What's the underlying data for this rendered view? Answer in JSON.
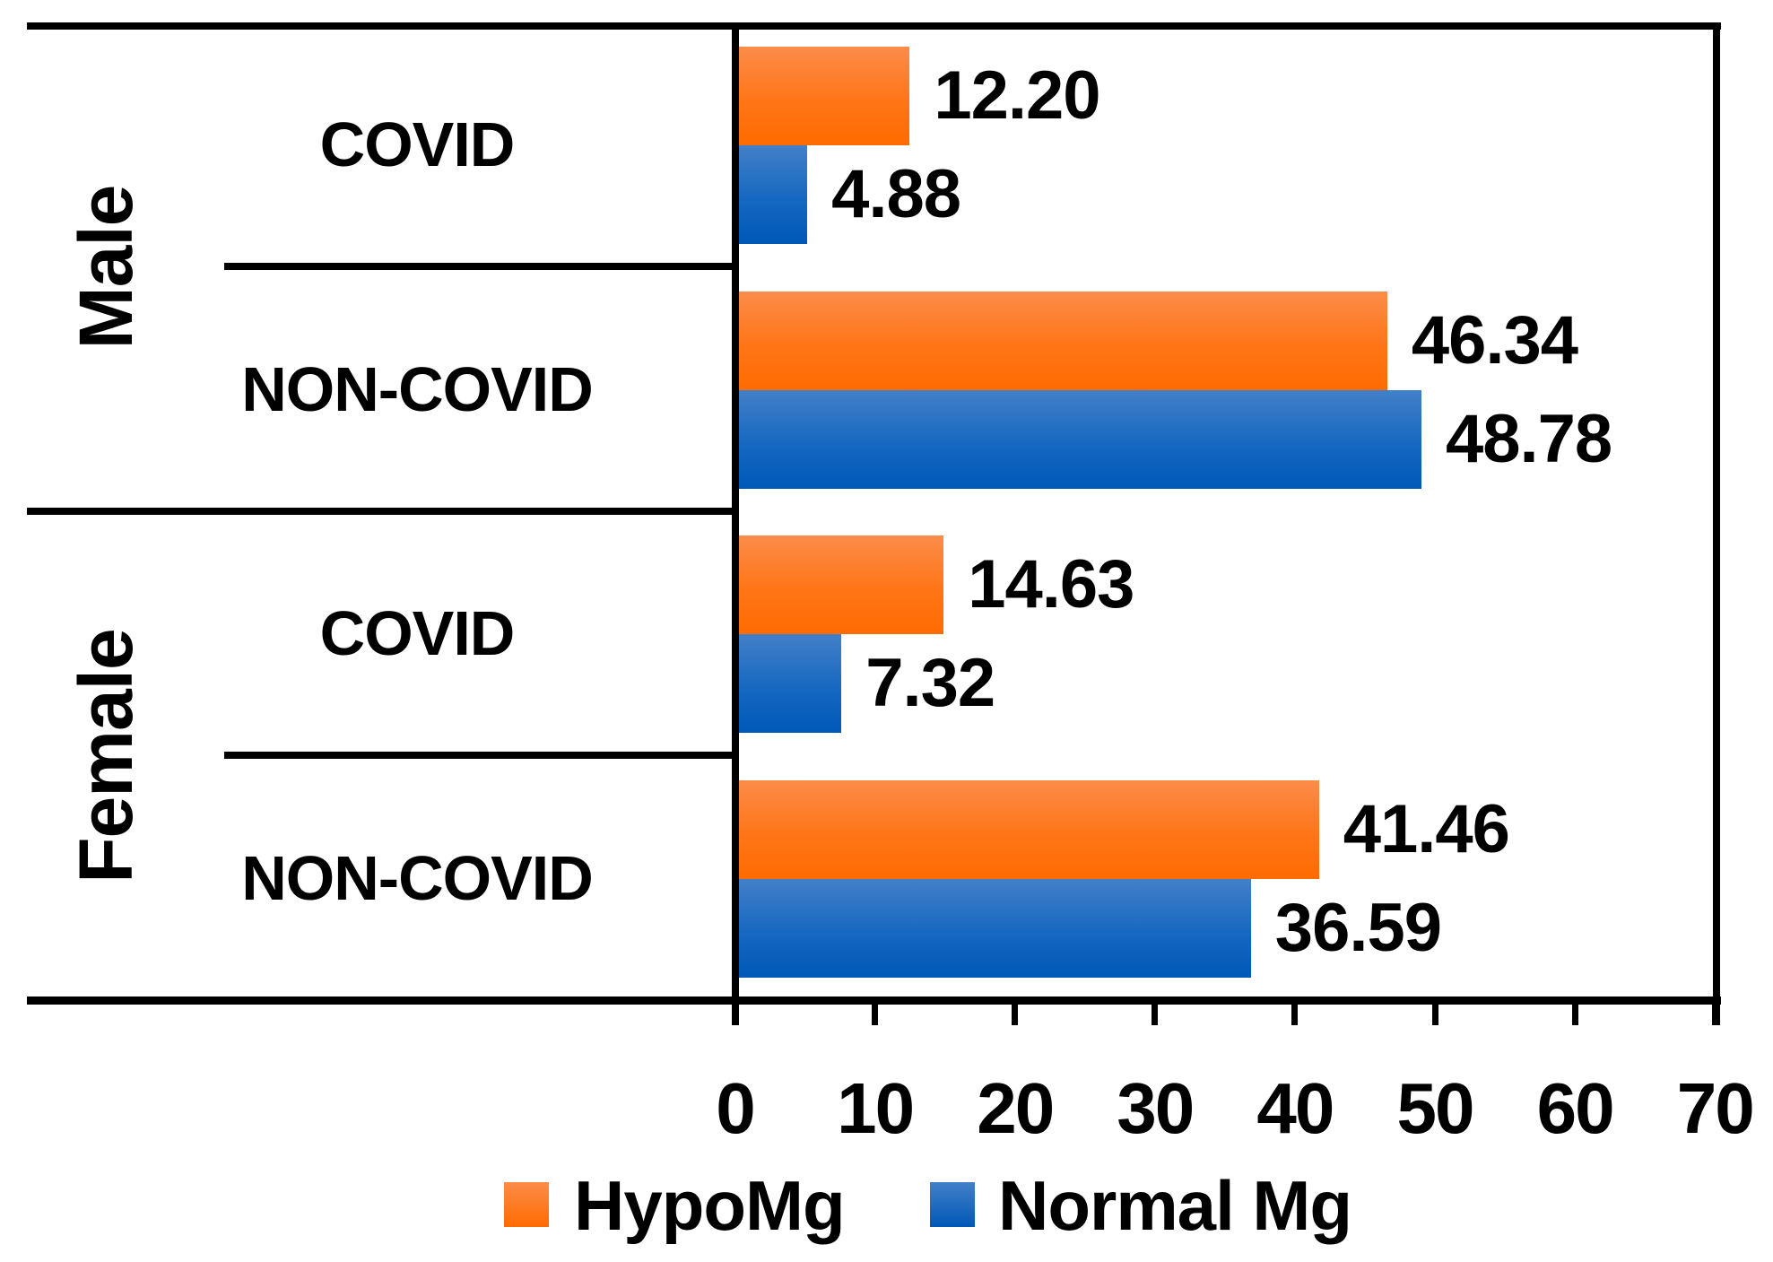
{
  "chart_data": {
    "type": "bar",
    "orientation": "horizontal",
    "title": "",
    "xlabel": "",
    "ylabel": "",
    "xlim": [
      0,
      70
    ],
    "x_ticks": [
      "0",
      "10",
      "20",
      "30",
      "40",
      "50",
      "60",
      "70"
    ],
    "grid": false,
    "legend_position": "bottom",
    "series": [
      {
        "name": "HypoMg",
        "color_top": "#FB8C4A",
        "color_bottom": "#FF6B00"
      },
      {
        "name": "Normal Mg",
        "color_top": "#4280C8",
        "color_bottom": "#0058B8"
      }
    ],
    "groups": [
      {
        "label": "Male",
        "categories": [
          {
            "label": "COVID",
            "values": [
              12.2,
              4.88
            ],
            "value_labels": [
              "12.20",
              "4.88"
            ]
          },
          {
            "label": "NON-COVID",
            "values": [
              46.34,
              48.78
            ],
            "value_labels": [
              "46.34",
              "48.78"
            ]
          }
        ]
      },
      {
        "label": "Female",
        "categories": [
          {
            "label": "COVID",
            "values": [
              14.63,
              7.32
            ],
            "value_labels": [
              "14.63",
              "7.32"
            ]
          },
          {
            "label": "NON-COVID",
            "values": [
              41.46,
              36.59
            ],
            "value_labels": [
              "41.46",
              "36.59"
            ]
          }
        ]
      }
    ]
  },
  "legend": {
    "items": [
      {
        "label": "HypoMg"
      },
      {
        "label": "Normal Mg"
      }
    ]
  },
  "colors": {
    "axis": "#000000",
    "text": "#000000",
    "background": "#FFFFFF"
  }
}
